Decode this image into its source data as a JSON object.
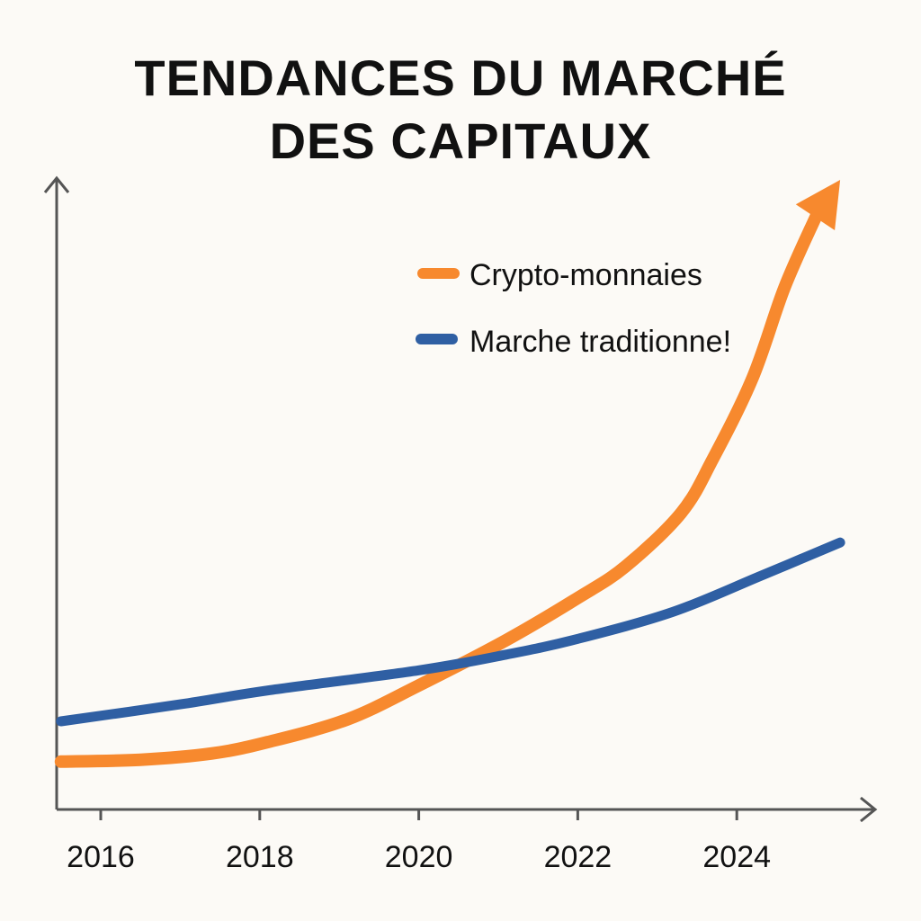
{
  "chart_data": {
    "type": "line",
    "title_lines": [
      "TENDANCES DU MARCHÉ",
      "DES CAPITAUX"
    ],
    "xlabel": "",
    "ylabel": "",
    "x_ticks": [
      "2016",
      "2018",
      "2020",
      "2022",
      "2024"
    ],
    "xlim": [
      2015.5,
      2025.5
    ],
    "ylim": [
      0,
      100
    ],
    "grid": false,
    "legend_position": "top-right",
    "series": [
      {
        "name": "Crypto-monnaies",
        "color": "#f7892e",
        "x": [
          2015.5,
          2016.5,
          2017.4,
          2018.1,
          2019.1,
          2020.0,
          2021.1,
          2022.0,
          2022.6,
          2023.3,
          2023.7,
          2024.2,
          2024.6,
          2025.0,
          2025.3
        ],
        "y": [
          7.6,
          7.9,
          8.9,
          10.7,
          14.3,
          19.7,
          26.9,
          33.6,
          38.6,
          47.1,
          55.7,
          68.6,
          82.9,
          94.3,
          100
        ]
      },
      {
        "name": "Marche traditionne!",
        "color": "#2f5fa3",
        "x": [
          2015.5,
          2017.0,
          2018.1,
          2020.0,
          2021.1,
          2022.0,
          2023.2,
          2024.3,
          2025.3
        ],
        "y": [
          14.0,
          16.7,
          18.9,
          22.1,
          24.6,
          27.1,
          31.4,
          37.1,
          42.4
        ]
      }
    ]
  }
}
